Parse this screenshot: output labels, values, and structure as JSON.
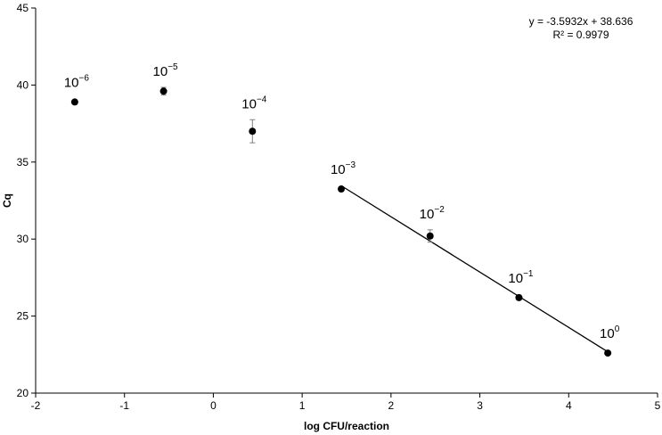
{
  "chart_data": {
    "type": "scatter",
    "title": "",
    "xlabel": "log CFU/reaction",
    "ylabel": "Cq",
    "xlim": [
      -2,
      5
    ],
    "ylim": [
      20,
      45
    ],
    "xticks": [
      -2,
      -1,
      0,
      1,
      2,
      3,
      4,
      5
    ],
    "yticks": [
      20,
      25,
      30,
      35,
      40,
      45
    ],
    "xtick_labels": [
      "-2",
      "-1",
      "0",
      "1",
      "2",
      "3",
      "4",
      "5"
    ],
    "ytick_labels": [
      "20",
      "25",
      "30",
      "35",
      "40",
      "45"
    ],
    "grid": false,
    "legend": "none",
    "marker_color": "#000000",
    "errorbar_color": "#7f7f7f",
    "points": [
      {
        "x": -1.56,
        "y": 38.9,
        "err": 0.1,
        "label_base": "10",
        "label_exp": "−6"
      },
      {
        "x": -0.56,
        "y": 39.6,
        "err": 0.25,
        "label_base": "10",
        "label_exp": "−5"
      },
      {
        "x": 0.44,
        "y": 37.0,
        "err": 0.75,
        "label_base": "10",
        "label_exp": "−4"
      },
      {
        "x": 1.44,
        "y": 33.25,
        "err": 0.15,
        "label_base": "10",
        "label_exp": "−3"
      },
      {
        "x": 2.44,
        "y": 30.2,
        "err": 0.4,
        "label_base": "10",
        "label_exp": "−2"
      },
      {
        "x": 3.44,
        "y": 26.2,
        "err": 0.1,
        "label_base": "10",
        "label_exp": "−1"
      },
      {
        "x": 4.44,
        "y": 22.6,
        "err": 0.1,
        "label_base": "10",
        "label_exp": "0"
      }
    ],
    "trendline": {
      "x_start": 1.44,
      "x_end": 4.44,
      "slope": -3.5932,
      "intercept": 38.636
    },
    "annotations": {
      "equation": "y = -3.5932x + 38.636",
      "r_squared": "R² = 0.9979"
    }
  }
}
